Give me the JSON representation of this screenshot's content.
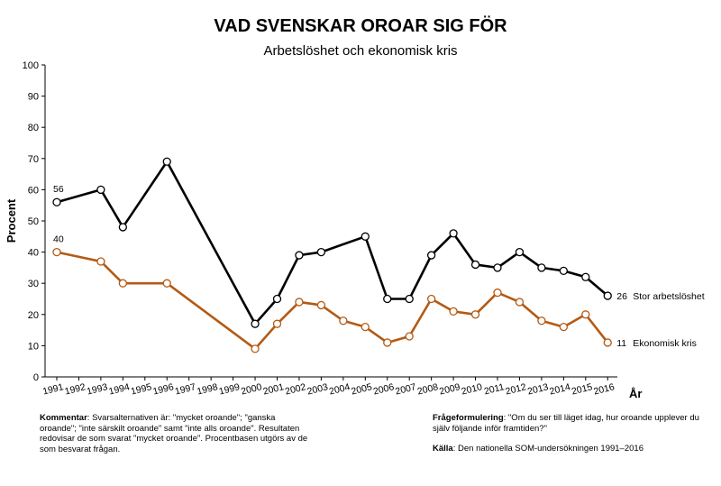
{
  "title": "VAD SVENSKAR OROAR SIG FÖR",
  "subtitle": "Arbetslöshet och ekonomisk kris",
  "footer": {
    "comment_label": "Kommentar",
    "comment_text": ": Svarsalternativen är: \"mycket oroande\"; \"ganska oroande\"; \"inte särskilt oroande\" samt \"inte alls oroande\". Resultaten redovisar de som svarat \"mycket oroande\". Procentbasen utgörs av de som besvarat frågan.",
    "question_label": "Frågeformulering",
    "question_text": ": \"Om du ser till läget idag, hur oroande upplever du själv följande inför framtiden?\"",
    "source_label": "Källa",
    "source_text": ": Den nationella SOM-undersökningen 1991–2016"
  },
  "chart_data": {
    "type": "line",
    "title": "VAD SVENSKAR OROAR SIG FÖR",
    "subtitle": "Arbetslöshet och ekonomisk kris",
    "xlabel": "År",
    "ylabel": "Procent",
    "ylim": [
      0,
      100
    ],
    "yticks": [
      0,
      10,
      20,
      30,
      40,
      50,
      60,
      70,
      80,
      90,
      100
    ],
    "categories": [
      "1991",
      "1992",
      "1993",
      "1994",
      "1995",
      "1996",
      "1997",
      "1998",
      "1999",
      "2000",
      "2001",
      "2002",
      "2003",
      "2004",
      "2005",
      "2006",
      "2007",
      "2008",
      "2009",
      "2010",
      "2011",
      "2012",
      "2013",
      "2014",
      "2015",
      "2016"
    ],
    "grid": false,
    "series": [
      {
        "name": "Stor arbetslöshet",
        "color": "#000000",
        "x": [
          1991,
          1993,
          1994,
          1996,
          2000,
          2001,
          2002,
          2003,
          2005,
          2006,
          2007,
          2008,
          2009,
          2010,
          2011,
          2012,
          2013,
          2014,
          2015,
          2016
        ],
        "values": [
          56,
          60,
          48,
          69,
          17,
          25,
          39,
          40,
          45,
          25,
          25,
          39,
          46,
          36,
          35,
          40,
          35,
          34,
          32,
          26
        ],
        "first_label": "56",
        "last_label": "26"
      },
      {
        "name": "Ekonomisk kris",
        "color": "#b35a14",
        "x": [
          1991,
          1993,
          1994,
          1996,
          2000,
          2001,
          2002,
          2003,
          2004,
          2005,
          2006,
          2007,
          2008,
          2009,
          2010,
          2011,
          2012,
          2013,
          2014,
          2015,
          2016
        ],
        "values": [
          40,
          37,
          30,
          30,
          9,
          17,
          24,
          23,
          18,
          16,
          11,
          13,
          25,
          21,
          20,
          27,
          24,
          18,
          16,
          20,
          11
        ],
        "first_label": "40",
        "last_label": "11"
      }
    ]
  }
}
